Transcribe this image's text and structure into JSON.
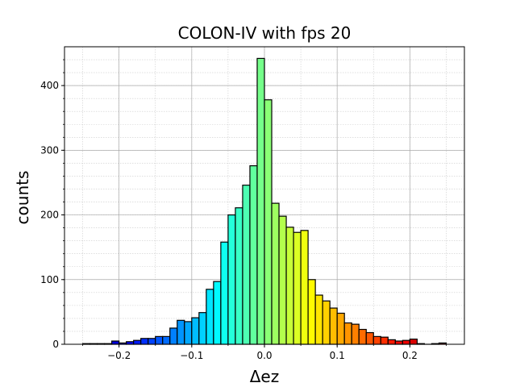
{
  "chart_data": {
    "type": "bar",
    "title": "COLON-IV with fps 20",
    "xlabel": "Δez",
    "ylabel": "counts",
    "xlim": [
      -0.275,
      0.275
    ],
    "ylim": [
      0,
      460
    ],
    "x_ticks": [
      -0.2,
      -0.1,
      0.0,
      0.1,
      0.2
    ],
    "x_tick_labels": [
      "−0.2",
      "−0.1",
      "0.0",
      "0.1",
      "0.2"
    ],
    "y_ticks": [
      0,
      100,
      200,
      300,
      400
    ],
    "y_tick_labels": [
      "0",
      "100",
      "200",
      "300",
      "400"
    ],
    "grid": true,
    "minor_grid": true,
    "colormap": "jet",
    "bin_edges_start": -0.25,
    "bin_width": 0.01,
    "values": [
      1,
      1,
      1,
      1,
      5,
      2,
      4,
      6,
      9,
      9,
      12,
      12,
      25,
      37,
      35,
      41,
      49,
      85,
      97,
      158,
      200,
      211,
      246,
      276,
      442,
      378,
      218,
      198,
      181,
      173,
      176,
      100,
      76,
      67,
      56,
      48,
      33,
      31,
      23,
      18,
      12,
      11,
      7,
      5,
      6,
      8,
      1,
      0,
      1,
      2
    ]
  }
}
